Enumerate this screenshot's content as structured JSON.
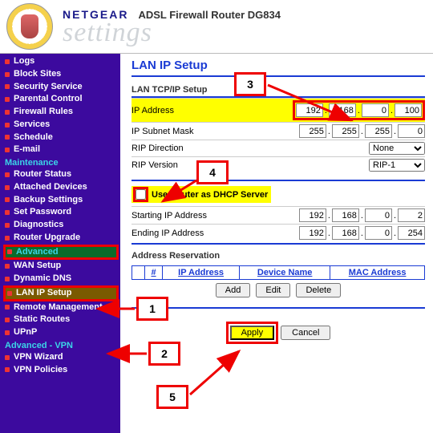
{
  "header": {
    "brand": "NETGEAR",
    "model": "ADSL Firewall Router DG834",
    "subtitle": "settings"
  },
  "sidebar": {
    "groups": [
      {
        "type": "item",
        "label": "Logs"
      },
      {
        "type": "item",
        "label": "Block Sites"
      },
      {
        "type": "item",
        "label": "Security Service"
      },
      {
        "type": "item",
        "label": "Parental Control"
      },
      {
        "type": "item",
        "label": "Firewall Rules"
      },
      {
        "type": "item",
        "label": "Services"
      },
      {
        "type": "item",
        "label": "Schedule"
      },
      {
        "type": "item",
        "label": "E-mail"
      },
      {
        "type": "section",
        "label": "Maintenance"
      },
      {
        "type": "item",
        "label": "Router Status"
      },
      {
        "type": "item",
        "label": "Attached Devices"
      },
      {
        "type": "item",
        "label": "Backup Settings"
      },
      {
        "type": "item",
        "label": "Set Password"
      },
      {
        "type": "item",
        "label": "Diagnostics"
      },
      {
        "type": "item",
        "label": "Router Upgrade"
      },
      {
        "type": "section-hi1",
        "label": "Advanced"
      },
      {
        "type": "item",
        "label": "WAN Setup"
      },
      {
        "type": "item",
        "label": "Dynamic DNS"
      },
      {
        "type": "item-hi2",
        "label": "LAN IP Setup"
      },
      {
        "type": "item",
        "label": "Remote Management"
      },
      {
        "type": "item",
        "label": "Static Routes"
      },
      {
        "type": "item",
        "label": "UPnP"
      },
      {
        "type": "section",
        "label": "Advanced - VPN"
      },
      {
        "type": "item",
        "label": "VPN Wizard"
      },
      {
        "type": "item",
        "label": "VPN Policies"
      }
    ]
  },
  "main": {
    "title": "LAN IP Setup",
    "tcpip": {
      "heading": "LAN TCP/IP Setup",
      "ip_label": "IP Address",
      "ip": [
        "192",
        "168",
        "0",
        "100"
      ],
      "mask_label": "IP Subnet Mask",
      "mask": [
        "255",
        "255",
        "255",
        "0"
      ],
      "rip_dir_label": "RIP Direction",
      "rip_dir_value": "None",
      "rip_ver_label": "RIP Version",
      "rip_ver_value": "RIP-1"
    },
    "dhcp": {
      "use_label": "Use Router as DHCP Server",
      "start_label": "Starting IP Address",
      "start": [
        "192",
        "168",
        "0",
        "2"
      ],
      "end_label": "Ending IP Address",
      "end": [
        "192",
        "168",
        "0",
        "254"
      ]
    },
    "reservation": {
      "heading": "Address Reservation",
      "cols": [
        "#",
        "IP Address",
        "Device Name",
        "MAC Address"
      ],
      "buttons": {
        "add": "Add",
        "edit": "Edit",
        "delete": "Delete"
      }
    },
    "actions": {
      "apply": "Apply",
      "cancel": "Cancel"
    }
  },
  "callouts": {
    "c1": "1",
    "c2": "2",
    "c3": "3",
    "c4": "4",
    "c5": "5"
  }
}
